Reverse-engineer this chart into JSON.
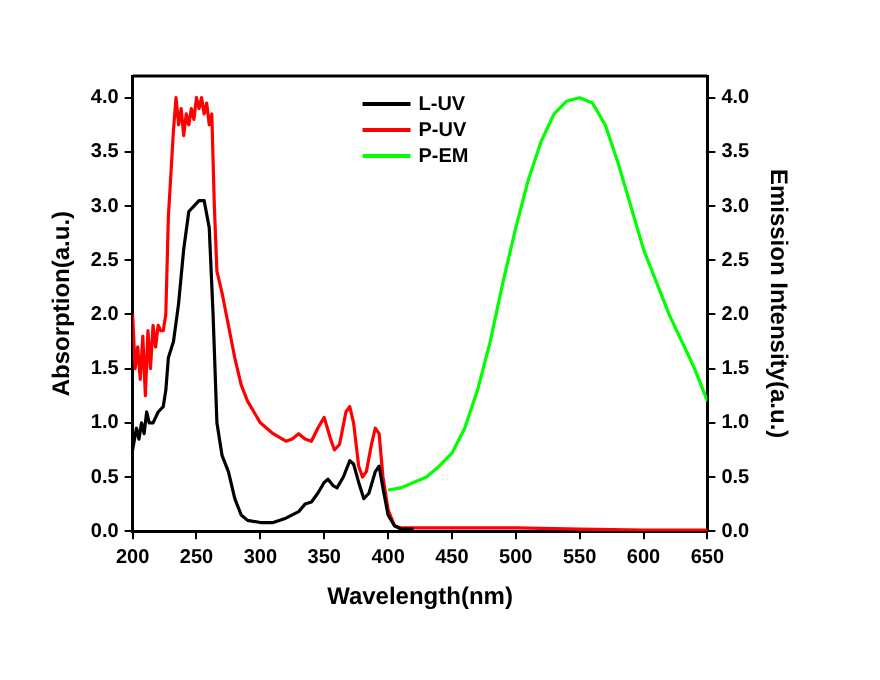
{
  "chart_data": {
    "type": "line",
    "xlabel": "Wavelength(nm)",
    "ylabel": "Absorption(a.u.)",
    "y2label": "Emission Intensity(a.u.)",
    "xlim": [
      200,
      650
    ],
    "xticks": [
      200,
      250,
      300,
      350,
      400,
      450,
      500,
      550,
      600,
      650
    ],
    "ylim": [
      0,
      4.2
    ],
    "yticks": [
      {
        "value": 0,
        "label": "0.0"
      },
      {
        "value": 0.5,
        "label": "0.5"
      },
      {
        "value": 1,
        "label": "1.0"
      },
      {
        "value": 1.5,
        "label": "1.5"
      },
      {
        "value": 2,
        "label": "2.0"
      },
      {
        "value": 2.5,
        "label": "2.5"
      },
      {
        "value": 3,
        "label": "3.0"
      },
      {
        "value": 3.5,
        "label": "3.5"
      },
      {
        "value": 4,
        "label": "4.0"
      }
    ],
    "y2lim": [
      0,
      4.2
    ],
    "y2ticks": [
      {
        "value": 0,
        "label": "0.0"
      },
      {
        "value": 0.5,
        "label": "0.5"
      },
      {
        "value": 1,
        "label": "1.0"
      },
      {
        "value": 1.5,
        "label": "1.5"
      },
      {
        "value": 2,
        "label": "2.0"
      },
      {
        "value": 2.5,
        "label": "2.5"
      },
      {
        "value": 3,
        "label": "3.0"
      },
      {
        "value": 3.5,
        "label": "3.5"
      },
      {
        "value": 4,
        "label": "4.0"
      }
    ],
    "grid": false,
    "legend": "top right",
    "marker": "none",
    "line_style": "solid",
    "series": [
      {
        "name": "L-UV",
        "color": "#000000",
        "x": [
          200,
          203,
          205,
          207,
          209,
          211,
          213,
          216,
          220,
          224,
          226,
          228,
          232,
          236,
          240,
          244,
          248,
          252,
          256,
          260,
          263,
          266,
          270,
          275,
          280,
          285,
          290,
          300,
          310,
          320,
          330,
          335,
          340,
          345,
          350,
          353,
          357,
          360,
          365,
          370,
          373,
          377,
          381,
          385,
          390,
          393,
          396,
          400,
          405,
          410,
          420
        ],
        "values": [
          0.75,
          0.95,
          0.85,
          1.0,
          0.9,
          1.1,
          1.0,
          1.0,
          1.1,
          1.15,
          1.3,
          1.6,
          1.75,
          2.1,
          2.6,
          2.95,
          3.0,
          3.05,
          3.05,
          2.8,
          2.0,
          1.0,
          0.7,
          0.55,
          0.3,
          0.15,
          0.1,
          0.08,
          0.08,
          0.12,
          0.18,
          0.25,
          0.27,
          0.35,
          0.45,
          0.48,
          0.42,
          0.4,
          0.5,
          0.65,
          0.62,
          0.45,
          0.3,
          0.35,
          0.55,
          0.6,
          0.4,
          0.15,
          0.05,
          0.02,
          0.02
        ]
      },
      {
        "name": "P-UV",
        "color": "#ff0000",
        "x": [
          200,
          202,
          204,
          206,
          208,
          210,
          212,
          214,
          216,
          218,
          220,
          222,
          224,
          226,
          228,
          230,
          232,
          234,
          236,
          238,
          240,
          242,
          244,
          246,
          248,
          250,
          252,
          254,
          256,
          258,
          260,
          262,
          264,
          266,
          270,
          275,
          280,
          285,
          290,
          300,
          310,
          320,
          325,
          330,
          335,
          340,
          345,
          350,
          355,
          358,
          362,
          367,
          370,
          373,
          377,
          380,
          383,
          387,
          390,
          393,
          396,
          400,
          405,
          410,
          450,
          500,
          550,
          600,
          650
        ],
        "values": [
          2.0,
          1.5,
          1.7,
          1.4,
          1.8,
          1.25,
          1.85,
          1.5,
          1.9,
          1.7,
          1.9,
          1.85,
          1.85,
          2.0,
          2.9,
          3.3,
          3.7,
          4.0,
          3.75,
          3.9,
          3.65,
          3.85,
          3.75,
          3.9,
          3.8,
          4.0,
          3.9,
          4.0,
          3.85,
          3.95,
          3.75,
          3.85,
          3.0,
          2.4,
          2.2,
          1.9,
          1.6,
          1.35,
          1.2,
          1.0,
          0.9,
          0.83,
          0.85,
          0.9,
          0.85,
          0.83,
          0.95,
          1.05,
          0.85,
          0.75,
          0.8,
          1.1,
          1.15,
          1.0,
          0.6,
          0.5,
          0.55,
          0.8,
          0.95,
          0.9,
          0.5,
          0.2,
          0.05,
          0.03,
          0.03,
          0.03,
          0.02,
          0.01,
          0.01
        ]
      },
      {
        "name": "P-EM",
        "color": "#00ff00",
        "axis": "y2",
        "x": [
          400,
          410,
          420,
          430,
          440,
          450,
          460,
          470,
          480,
          490,
          500,
          510,
          520,
          530,
          540,
          550,
          560,
          570,
          580,
          590,
          600,
          610,
          620,
          630,
          640,
          650
        ],
        "values": [
          0.38,
          0.4,
          0.45,
          0.5,
          0.6,
          0.72,
          0.95,
          1.3,
          1.75,
          2.3,
          2.8,
          3.25,
          3.6,
          3.85,
          3.97,
          4.0,
          3.95,
          3.75,
          3.4,
          3.0,
          2.6,
          2.3,
          2.0,
          1.75,
          1.5,
          1.2
        ]
      }
    ]
  }
}
